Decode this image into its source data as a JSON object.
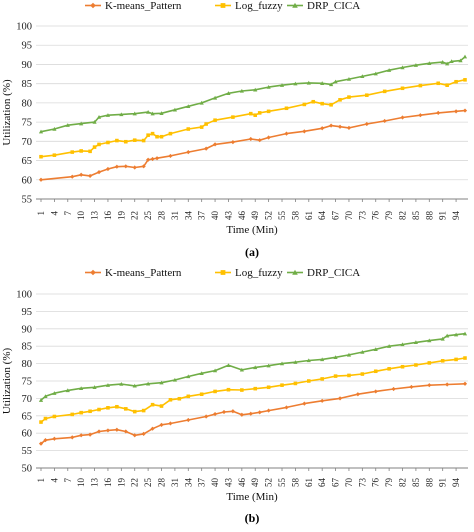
{
  "colors": {
    "kmeans": "#ED7D31",
    "logfuzzy": "#FFC000",
    "drp": "#70AD47",
    "grid": "#D9D9D9",
    "axis": "#808080"
  },
  "chart_data": [
    {
      "type": "line",
      "panel_label": "(a)",
      "xlabel": "Time (Min)",
      "ylabel": "Utilization (%)",
      "ylim": [
        55,
        100
      ],
      "yticks": [
        "55",
        "60",
        "65",
        "70",
        "75",
        "80",
        "85",
        "90",
        "95",
        "100"
      ],
      "xticks": [
        "1",
        "4",
        "7",
        "10",
        "13",
        "16",
        "19",
        "22",
        "25",
        "28",
        "31",
        "34",
        "37",
        "40",
        "43",
        "46",
        "49",
        "52",
        "55",
        "58",
        "61",
        "64",
        "67",
        "70",
        "73",
        "76",
        "79",
        "82",
        "85",
        "88",
        "91",
        "94"
      ],
      "x_range": [
        1,
        96
      ],
      "grid": "horizontal",
      "legend_position": "top",
      "series": [
        {
          "name": "K-means_Pattern",
          "marker": "diamond",
          "color_key": "kmeans",
          "x": [
            1,
            8,
            10,
            12,
            14,
            16,
            18,
            20,
            22,
            24,
            25,
            26,
            27,
            30,
            34,
            38,
            40,
            44,
            48,
            50,
            52,
            56,
            60,
            64,
            66,
            68,
            70,
            74,
            78,
            82,
            86,
            90,
            94,
            96
          ],
          "y": [
            60,
            60.8,
            61.3,
            61,
            62,
            62.8,
            63.4,
            63.5,
            63.2,
            63.5,
            65.2,
            65.4,
            65.6,
            66.2,
            67.2,
            68.1,
            69.2,
            69.8,
            70.6,
            70.3,
            71,
            72,
            72.6,
            73.4,
            74.1,
            73.8,
            73.5,
            74.5,
            75.3,
            76.2,
            76.8,
            77.4,
            77.8,
            78
          ]
        },
        {
          "name": "Log_fuzzy",
          "marker": "square",
          "color_key": "logfuzzy",
          "x": [
            1,
            4,
            8,
            10,
            12,
            13,
            14,
            16,
            18,
            20,
            22,
            24,
            25,
            26,
            27,
            28,
            30,
            34,
            37,
            38,
            40,
            44,
            48,
            49,
            50,
            52,
            56,
            60,
            62,
            64,
            66,
            68,
            70,
            74,
            78,
            82,
            86,
            90,
            92,
            94,
            96
          ],
          "y": [
            66,
            66.4,
            67.2,
            67.5,
            67.4,
            68.5,
            69.2,
            69.7,
            70.2,
            69.9,
            70.3,
            70.2,
            71.6,
            72,
            71.2,
            71.2,
            72,
            73.2,
            73.7,
            74.5,
            75.5,
            76.3,
            77.2,
            76.8,
            77.4,
            77.8,
            78.6,
            79.6,
            80.3,
            79.8,
            79.5,
            80.8,
            81.5,
            82,
            83,
            83.8,
            84.5,
            85.1,
            84.6,
            85.5,
            86
          ]
        },
        {
          "name": "DRP_CICA",
          "marker": "triangle",
          "color_key": "drp",
          "x": [
            1,
            4,
            7,
            10,
            13,
            14,
            16,
            19,
            22,
            25,
            26,
            28,
            31,
            34,
            37,
            40,
            43,
            46,
            49,
            52,
            55,
            58,
            61,
            64,
            66,
            67,
            70,
            73,
            76,
            79,
            82,
            85,
            88,
            91,
            92,
            93,
            95,
            96
          ],
          "y": [
            72.5,
            73.2,
            74.2,
            74.6,
            75,
            76.3,
            76.8,
            77,
            77.2,
            77.6,
            77.2,
            77.3,
            78.2,
            79.1,
            80,
            81.3,
            82.5,
            83.1,
            83.4,
            84.1,
            84.6,
            85,
            85.2,
            85.1,
            84.8,
            85.5,
            86.2,
            86.9,
            87.6,
            88.5,
            89.2,
            89.8,
            90.3,
            90.6,
            90.2,
            90.8,
            91,
            92
          ]
        }
      ]
    },
    {
      "type": "line",
      "panel_label": "(b)",
      "xlabel": "Time (Min)",
      "ylabel": "Utilization (%)",
      "ylim": [
        50,
        100
      ],
      "yticks": [
        "50",
        "55",
        "60",
        "65",
        "70",
        "75",
        "80",
        "85",
        "90",
        "95",
        "100"
      ],
      "xticks": [
        "1",
        "4",
        "7",
        "10",
        "13",
        "16",
        "19",
        "22",
        "25",
        "28",
        "31",
        "34",
        "37",
        "40",
        "43",
        "46",
        "49",
        "52",
        "55",
        "58",
        "61",
        "64",
        "67",
        "70",
        "73",
        "76",
        "79",
        "82",
        "85",
        "88",
        "91",
        "94"
      ],
      "x_range": [
        1,
        96
      ],
      "grid": "horizontal",
      "legend_position": "top",
      "series": [
        {
          "name": "K-means_Pattern",
          "marker": "diamond",
          "color_key": "kmeans",
          "x": [
            1,
            2,
            4,
            8,
            10,
            12,
            14,
            16,
            18,
            20,
            22,
            24,
            26,
            28,
            30,
            34,
            38,
            40,
            42,
            44,
            46,
            48,
            50,
            52,
            56,
            60,
            64,
            68,
            72,
            76,
            80,
            84,
            88,
            92,
            96
          ],
          "y": [
            57,
            58,
            58.4,
            58.8,
            59.4,
            59.6,
            60.5,
            60.8,
            61,
            60.5,
            59.4,
            59.8,
            61.3,
            62.4,
            62.8,
            63.8,
            64.8,
            65.5,
            66.1,
            66.3,
            65.3,
            65.6,
            66,
            66.5,
            67.4,
            68.5,
            69.3,
            70,
            71.2,
            72,
            72.7,
            73.3,
            73.8,
            74,
            74.2
          ]
        },
        {
          "name": "Log_fuzzy",
          "marker": "square",
          "color_key": "logfuzzy",
          "x": [
            1,
            2,
            4,
            8,
            10,
            12,
            14,
            16,
            18,
            20,
            22,
            24,
            26,
            28,
            30,
            32,
            34,
            37,
            40,
            43,
            46,
            49,
            52,
            55,
            58,
            61,
            64,
            67,
            70,
            73,
            76,
            79,
            82,
            85,
            88,
            91,
            94,
            96
          ],
          "y": [
            63.2,
            64.2,
            64.8,
            65.4,
            65.9,
            66.3,
            66.8,
            67.3,
            67.6,
            67,
            66.2,
            66.5,
            68.2,
            67.8,
            69.6,
            69.9,
            70.6,
            71.2,
            72,
            72.5,
            72.4,
            72.8,
            73.2,
            73.8,
            74.3,
            75,
            75.6,
            76.4,
            76.6,
            77,
            77.8,
            78.5,
            79.1,
            79.6,
            80.2,
            80.8,
            81.2,
            81.6
          ]
        },
        {
          "name": "DRP_CICA",
          "marker": "triangle",
          "color_key": "drp",
          "x": [
            1,
            2,
            4,
            7,
            10,
            13,
            16,
            19,
            22,
            25,
            28,
            31,
            34,
            37,
            40,
            43,
            46,
            49,
            52,
            55,
            58,
            61,
            64,
            67,
            70,
            73,
            76,
            79,
            82,
            85,
            88,
            91,
            92,
            94,
            96
          ],
          "y": [
            69.5,
            70.6,
            71.5,
            72.3,
            72.9,
            73.2,
            73.8,
            74.1,
            73.6,
            74.2,
            74.5,
            75.3,
            76.3,
            77.2,
            78,
            79.5,
            78.2,
            78.9,
            79.4,
            80,
            80.4,
            80.9,
            81.2,
            81.8,
            82.5,
            83.3,
            84.1,
            85,
            85.5,
            86.1,
            86.6,
            87.1,
            88,
            88.3,
            88.6
          ]
        }
      ]
    }
  ]
}
